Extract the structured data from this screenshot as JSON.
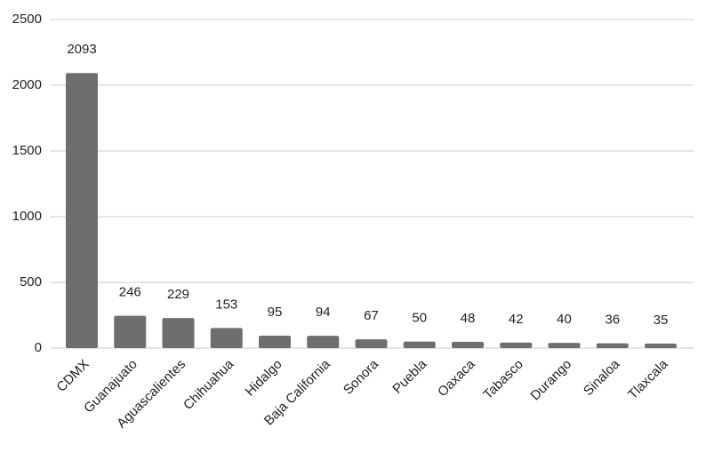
{
  "chart_data": {
    "type": "bar",
    "categories": [
      "CDMX",
      "Guanajuato",
      "Aguascalientes",
      "Chihuahua",
      "Hidalgo",
      "Baja California",
      "Sonora",
      "Puebla",
      "Oaxaca",
      "Tabasco",
      "Durango",
      "Sinaloa",
      "Tlaxcala"
    ],
    "values": [
      2093,
      246,
      229,
      153,
      95,
      94,
      67,
      50,
      48,
      42,
      40,
      36,
      35
    ],
    "color": "#6e6e6e",
    "ylim": [
      0,
      2500
    ],
    "yticks": [
      0,
      500,
      1000,
      1500,
      2000,
      2500
    ],
    "grid": true
  }
}
